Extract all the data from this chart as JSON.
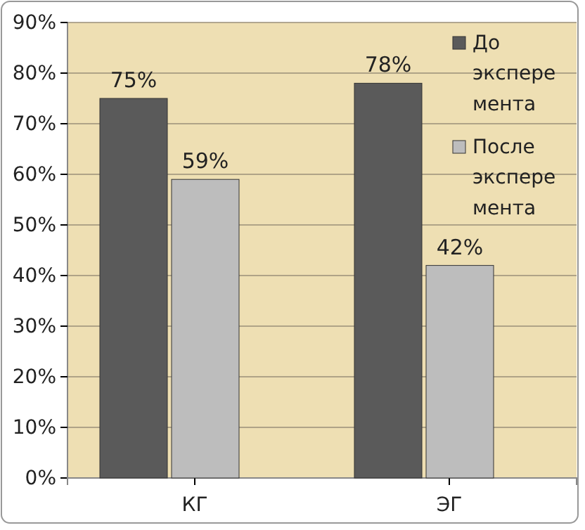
{
  "chart_data": {
    "type": "bar",
    "categories": [
      "КГ",
      "ЭГ"
    ],
    "series": [
      {
        "name": "До эксперемента",
        "color": "#5a5a5a",
        "values": [
          75,
          78
        ],
        "value_labels": [
          "75%",
          "78%"
        ]
      },
      {
        "name": "После эксперемента",
        "color": "#bdbdbd",
        "values": [
          59,
          42
        ],
        "value_labels": [
          "59%",
          "42%"
        ]
      }
    ],
    "ylim": [
      0,
      90
    ],
    "yticks": [
      {
        "value": 0,
        "label": "0%"
      },
      {
        "value": 10,
        "label": "10%"
      },
      {
        "value": 20,
        "label": "20%"
      },
      {
        "value": 30,
        "label": "30%"
      },
      {
        "value": 40,
        "label": "40%"
      },
      {
        "value": 50,
        "label": "50%"
      },
      {
        "value": 60,
        "label": "60%"
      },
      {
        "value": 70,
        "label": "70%"
      },
      {
        "value": 80,
        "label": "80%"
      },
      {
        "value": 90,
        "label": "90%"
      }
    ],
    "grid": "y",
    "legend": "top right"
  }
}
